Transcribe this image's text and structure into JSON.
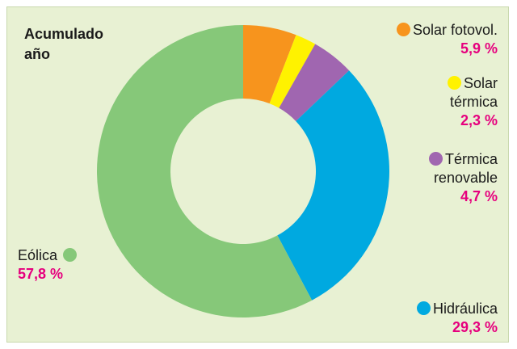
{
  "chart_data": {
    "type": "pie",
    "title": "Acumulado año",
    "categories": [
      "Solar fotovol.",
      "Solar térmica",
      "Térmica renovable",
      "Hidráulica",
      "Eólica"
    ],
    "values": [
      5.9,
      2.3,
      4.7,
      29.3,
      57.8
    ],
    "value_labels": [
      "5,9 %",
      "2,3 %",
      "4,7 %",
      "29,3 %",
      "57,8 %"
    ],
    "colors": [
      "#f7941d",
      "#fff200",
      "#a066b0",
      "#00a9e0",
      "#86c879"
    ]
  }
}
